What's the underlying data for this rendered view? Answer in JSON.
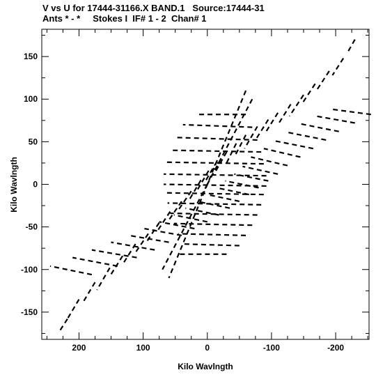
{
  "header": {
    "line1": "V vs U for 17444-31166.X BAND.1   Source:17444-31",
    "line2": "Ants * - *     Stokes I  IF# 1 - 2  Chan# 1"
  },
  "chart_data": {
    "type": "scatter",
    "title": "V vs U for 17444-31166.X BAND.1   Source:17444-31",
    "subtitle": "Ants * - *     Stokes I  IF# 1 - 2  Chan# 1",
    "xlabel": "Kilo Wavlngth",
    "ylabel": "Kilo Wavlngth",
    "xlim": [
      258,
      -252
    ],
    "ylim": [
      -182,
      182
    ],
    "x_reversed": true,
    "xticks": [
      200,
      100,
      0,
      -100,
      -200
    ],
    "xtick_labels": [
      "200",
      "100",
      "0",
      "-100",
      "-200"
    ],
    "yticks": [
      150,
      100,
      50,
      0,
      -50,
      -100,
      -150
    ],
    "ytick_labels": [
      "150",
      "100",
      "50",
      "0",
      "-50",
      "-100",
      "-150"
    ],
    "grid": false,
    "marker_color": "#000000",
    "tracks": [
      {
        "u": [
          -230,
          -218
        ],
        "v": [
          170,
          154
        ]
      },
      {
        "u": [
          -212,
          -195
        ],
        "v": [
          148,
          128
        ]
      },
      {
        "u": [
          -190,
          -170
        ],
        "v": [
          133,
          110
        ]
      },
      {
        "u": [
          -168,
          -148
        ],
        "v": [
          118,
          95
        ]
      },
      {
        "u": [
          -150,
          -128
        ],
        "v": [
          105,
          80
        ]
      },
      {
        "u": [
          -130,
          -110
        ],
        "v": [
          94,
          70
        ]
      },
      {
        "u": [
          -110,
          -90
        ],
        "v": [
          84,
          60
        ]
      },
      {
        "u": [
          -95,
          -75
        ],
        "v": [
          76,
          52
        ]
      },
      {
        "u": [
          -78,
          -58
        ],
        "v": [
          68,
          42
        ]
      },
      {
        "u": [
          -60,
          -42
        ],
        "v": [
          58,
          32
        ]
      },
      {
        "u": [
          -45,
          -28
        ],
        "v": [
          48,
          22
        ]
      },
      {
        "u": [
          -30,
          -12
        ],
        "v": [
          38,
          14
        ]
      },
      {
        "u": [
          -15,
          2
        ],
        "v": [
          27,
          5
        ]
      },
      {
        "u": [
          -2,
          15
        ],
        "v": [
          16,
          -6
        ]
      },
      {
        "u": [
          10,
          28
        ],
        "v": [
          5,
          -18
        ]
      },
      {
        "u": [
          25,
          45
        ],
        "v": [
          -8,
          -30
        ]
      },
      {
        "u": [
          40,
          60
        ],
        "v": [
          -20,
          -42
        ]
      },
      {
        "u": [
          58,
          78
        ],
        "v": [
          -32,
          -55
        ]
      },
      {
        "u": [
          75,
          95
        ],
        "v": [
          -45,
          -68
        ]
      },
      {
        "u": [
          92,
          112
        ],
        "v": [
          -58,
          -80
        ]
      },
      {
        "u": [
          112,
          132
        ],
        "v": [
          -70,
          -94
        ]
      },
      {
        "u": [
          132,
          152
        ],
        "v": [
          -84,
          -108
        ]
      },
      {
        "u": [
          152,
          172
        ],
        "v": [
          -98,
          -124
        ]
      },
      {
        "u": [
          175,
          195
        ],
        "v": [
          -115,
          -140
        ]
      },
      {
        "u": [
          200,
          218
        ],
        "v": [
          -135,
          -158
        ]
      },
      {
        "u": [
          218,
          230
        ],
        "v": [
          -158,
          -172
        ]
      },
      {
        "u": [
          -255,
          -195
        ],
        "v": [
          82,
          88
        ]
      },
      {
        "u": [
          -230,
          -170
        ],
        "v": [
          72,
          80
        ]
      },
      {
        "u": [
          -205,
          -145
        ],
        "v": [
          62,
          71
        ]
      },
      {
        "u": [
          -185,
          -125
        ],
        "v": [
          52,
          61
        ]
      },
      {
        "u": [
          -165,
          -105
        ],
        "v": [
          42,
          51
        ]
      },
      {
        "u": [
          -145,
          -88
        ],
        "v": [
          32,
          42
        ]
      },
      {
        "u": [
          -125,
          -68
        ],
        "v": [
          22,
          32
        ]
      },
      {
        "u": [
          -110,
          -55
        ],
        "v": [
          12,
          21
        ]
      },
      {
        "u": [
          -95,
          -42
        ],
        "v": [
          4,
          12
        ]
      },
      {
        "u": [
          -80,
          -28
        ],
        "v": [
          -4,
          4
        ]
      },
      {
        "u": [
          -65,
          -14
        ],
        "v": [
          -12,
          -4
        ]
      },
      {
        "u": [
          -50,
          0
        ],
        "v": [
          -20,
          -12
        ]
      },
      {
        "u": [
          -35,
          16
        ],
        "v": [
          -28,
          -20
        ]
      },
      {
        "u": [
          -18,
          34
        ],
        "v": [
          -36,
          -28
        ]
      },
      {
        "u": [
          0,
          52
        ],
        "v": [
          -44,
          -36
        ]
      },
      {
        "u": [
          20,
          75
        ],
        "v": [
          -52,
          -44
        ]
      },
      {
        "u": [
          40,
          98
        ],
        "v": [
          -60,
          -52
        ]
      },
      {
        "u": [
          60,
          122
        ],
        "v": [
          -68,
          -60
        ]
      },
      {
        "u": [
          82,
          150
        ],
        "v": [
          -77,
          -68
        ]
      },
      {
        "u": [
          110,
          180
        ],
        "v": [
          -86,
          -77
        ]
      },
      {
        "u": [
          140,
          210
        ],
        "v": [
          -96,
          -86
        ]
      },
      {
        "u": [
          180,
          245
        ],
        "v": [
          -106,
          -96
        ]
      },
      {
        "u": [
          -60,
          15
        ],
        "v": [
          82,
          82
        ]
      },
      {
        "u": [
          -70,
          38
        ],
        "v": [
          67,
          70
        ]
      },
      {
        "u": [
          -78,
          50
        ],
        "v": [
          52,
          55
        ]
      },
      {
        "u": [
          -84,
          58
        ],
        "v": [
          38,
          40
        ]
      },
      {
        "u": [
          -88,
          64
        ],
        "v": [
          24,
          26
        ]
      },
      {
        "u": [
          -92,
          68
        ],
        "v": [
          10,
          12
        ]
      },
      {
        "u": [
          -92,
          68
        ],
        "v": [
          -2,
          0
        ]
      },
      {
        "u": [
          -88,
          64
        ],
        "v": [
          -12,
          -10
        ]
      },
      {
        "u": [
          -84,
          62
        ],
        "v": [
          -24,
          -22
        ]
      },
      {
        "u": [
          -78,
          58
        ],
        "v": [
          -36,
          -34
        ]
      },
      {
        "u": [
          -70,
          52
        ],
        "v": [
          -48,
          -46
        ]
      },
      {
        "u": [
          -60,
          45
        ],
        "v": [
          -60,
          -58
        ]
      },
      {
        "u": [
          -50,
          40
        ],
        "v": [
          -72,
          -70
        ]
      },
      {
        "u": [
          -30,
          45
        ],
        "v": [
          -82,
          -82
        ]
      },
      {
        "u": [
          -70,
          0
        ],
        "v": [
          100,
          0
        ]
      },
      {
        "u": [
          0,
          70
        ],
        "v": [
          0,
          -100
        ]
      },
      {
        "u": [
          -60,
          60
        ],
        "v": [
          110,
          -110
        ]
      }
    ]
  }
}
